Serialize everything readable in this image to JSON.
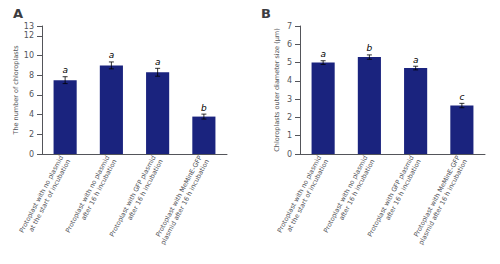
{
  "chart_data": [
    {
      "type": "bar",
      "title": "A",
      "ylabel": "The number of chloroplasts",
      "categories": [
        "Protoplast with no plasmid\nat the start of incubation",
        "Protoplast with no plasmid\nafter 16 h incubation",
        "Protoplast with GFP plasmid\nafter 16 h incubation",
        "Protoplast with MeMinE-GFP\nplasmid after 16 h incubation"
      ],
      "values": [
        7.5,
        9.0,
        8.3,
        3.8
      ],
      "errors": [
        0.35,
        0.35,
        0.4,
        0.25
      ],
      "annotations": [
        "a",
        "a",
        "a",
        "b"
      ],
      "color": "#1a237e",
      "ylim": [
        0,
        13
      ],
      "yticks": [
        0,
        2,
        4,
        6,
        8,
        10,
        12
      ],
      "grid": false
    },
    {
      "type": "bar",
      "title": "B",
      "ylabel": "Chloroplasts outer diameter size (µm)",
      "categories": [
        "Protoplast with no plasmid\nat the start of incubation",
        "Protoplast with no plasmid\nafter 16 h incubation",
        "Protoplast with GFP plasmid\nafter 16 h incubation",
        "Protoplast with MeMinE-GFP\nplasmid after 16 h incubation"
      ],
      "values": [
        5.0,
        5.3,
        4.7,
        2.65
      ],
      "errors": [
        0.1,
        0.12,
        0.1,
        0.12
      ],
      "annotations": [
        "a",
        "b",
        "a",
        "c"
      ],
      "color": "#1a237e",
      "ylim": [
        0,
        7
      ],
      "yticks": [
        0,
        1,
        2,
        3,
        4,
        5,
        6,
        7
      ],
      "grid": false
    }
  ]
}
